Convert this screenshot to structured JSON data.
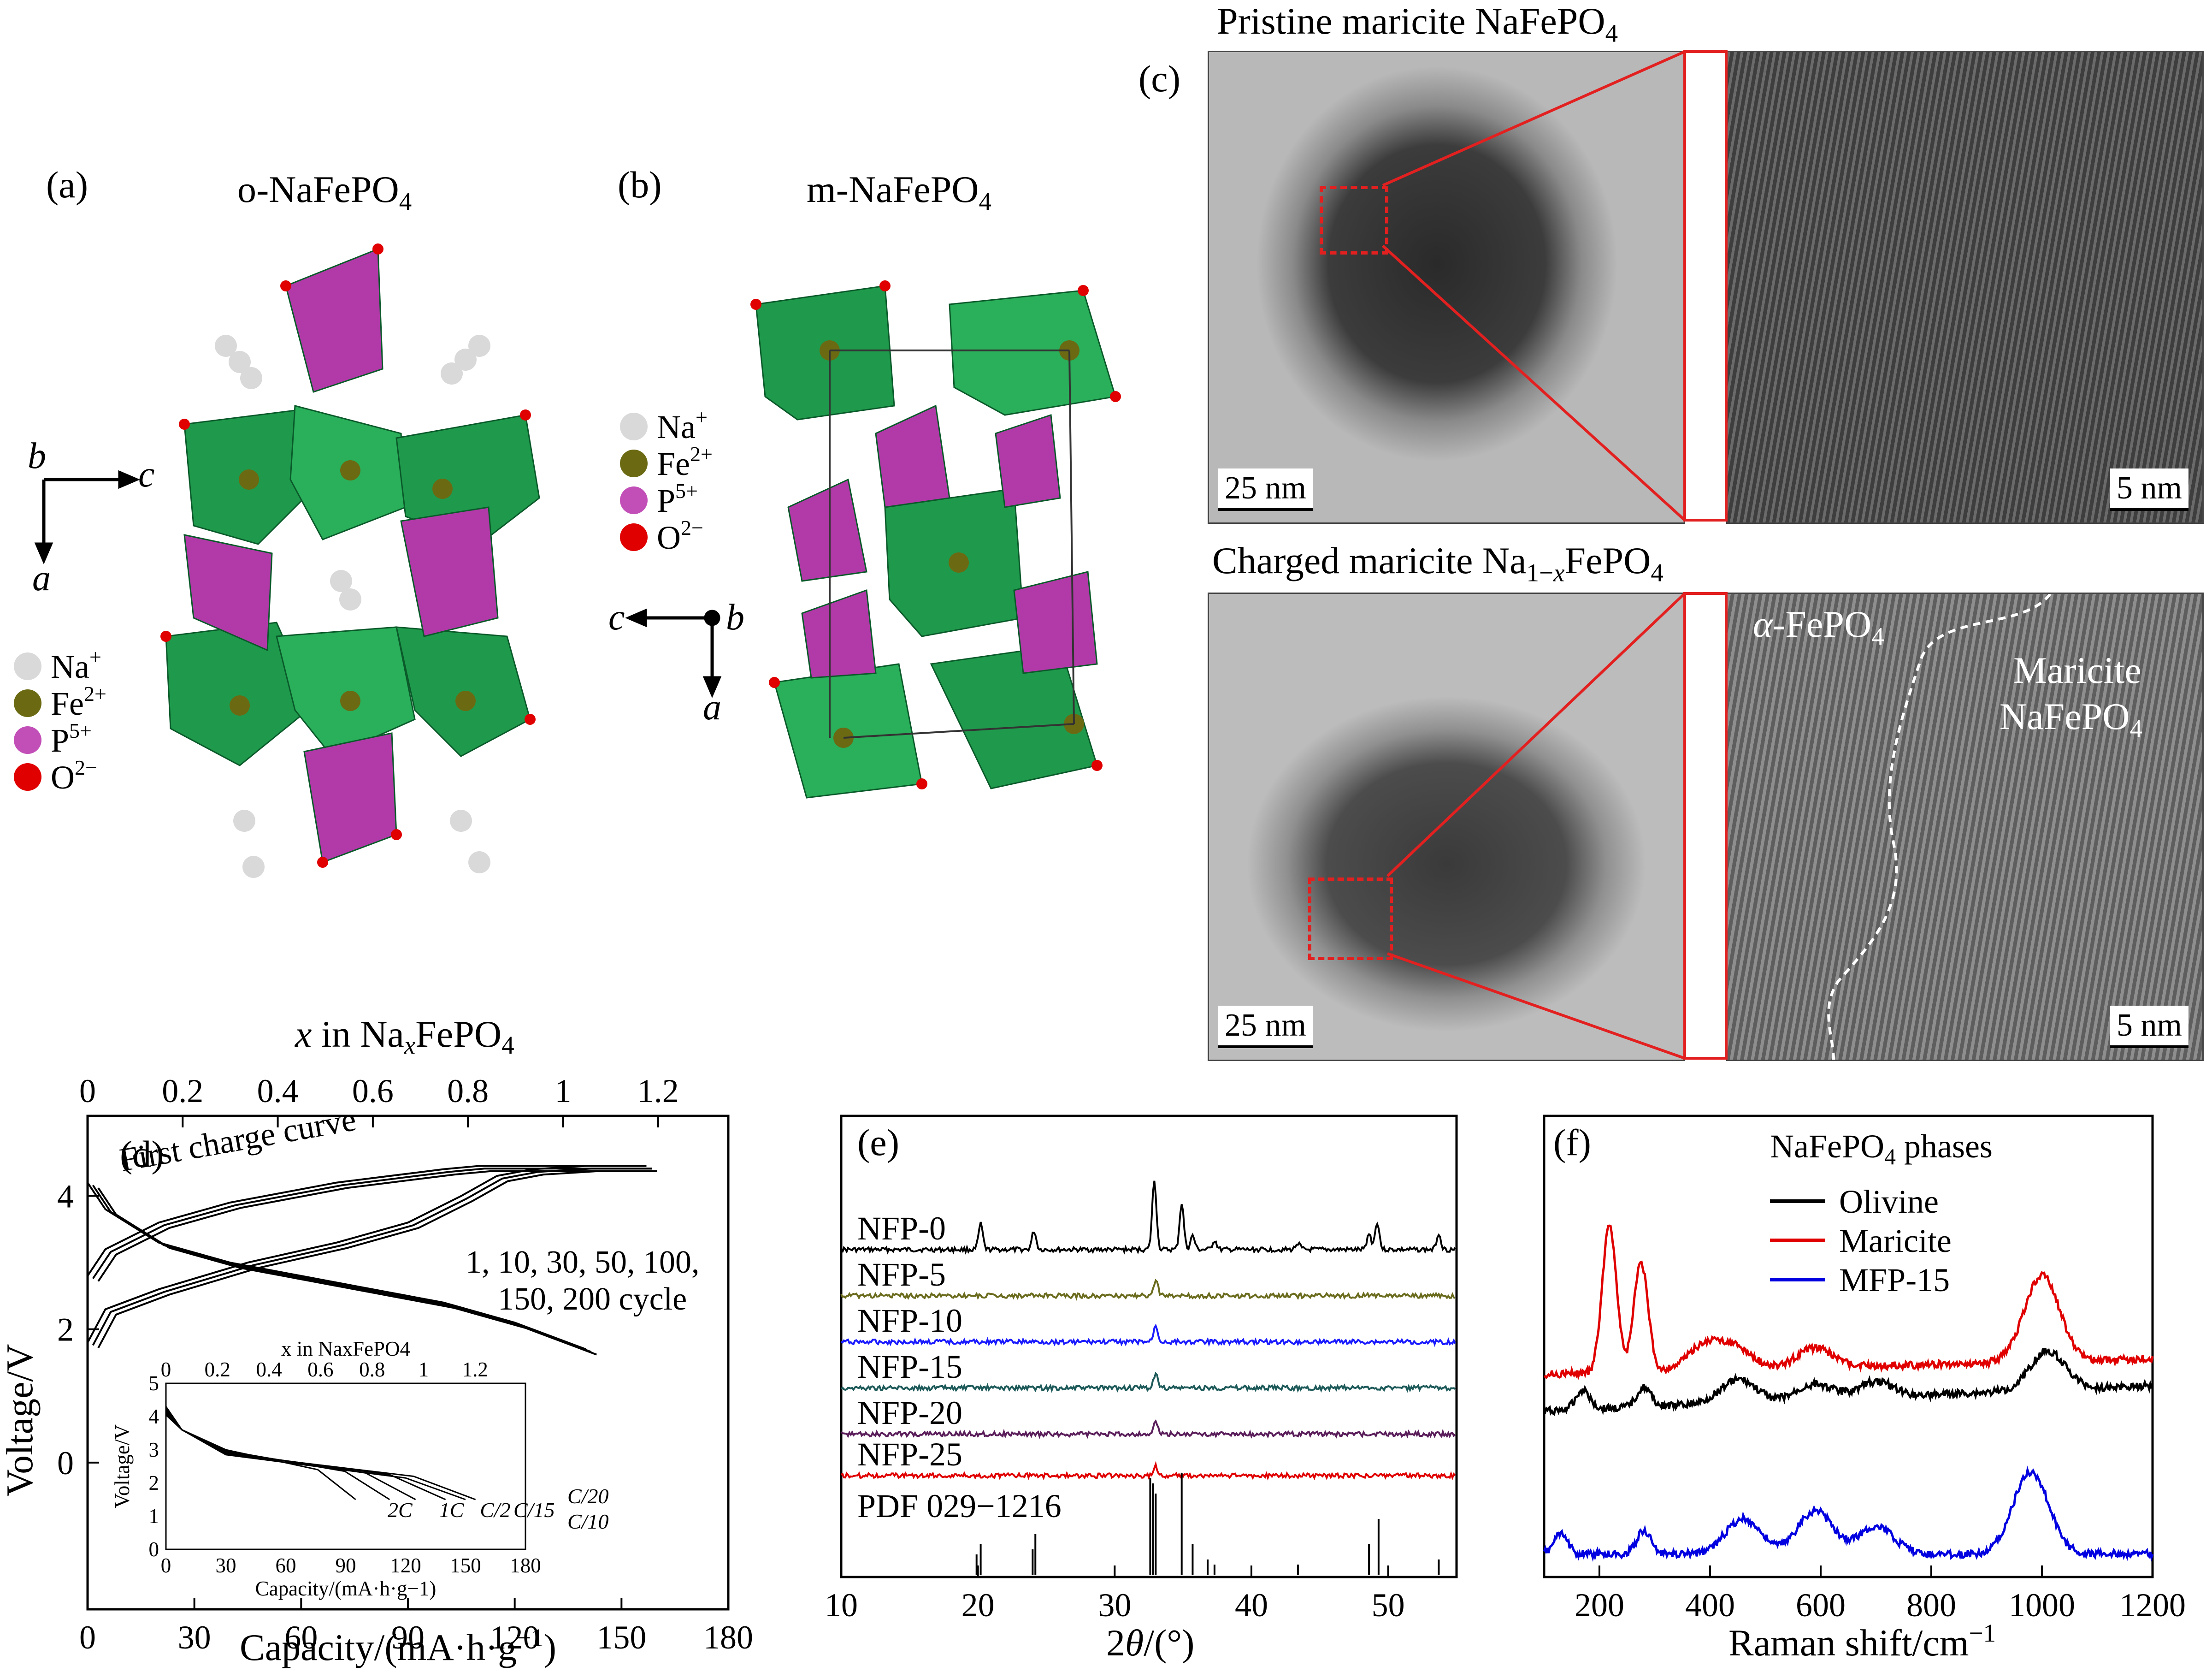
{
  "panels": {
    "a": {
      "label": "(a)",
      "title": "o-NaFePO4",
      "legend": [
        {
          "ion": "Na+",
          "color": "#d9d9d9"
        },
        {
          "ion": "Fe2+",
          "color": "#6b6a12"
        },
        {
          "ion": "P5+",
          "color": "#c24fb7"
        },
        {
          "ion": "O2−",
          "color": "#e00000"
        }
      ],
      "axes": {
        "h": "c",
        "v": "a",
        "point": "b"
      }
    },
    "b": {
      "label": "(b)",
      "title": "m-NaFePO4",
      "legend": [
        {
          "ion": "Na+",
          "color": "#d9d9d9"
        },
        {
          "ion": "Fe2+",
          "color": "#6b6a12"
        },
        {
          "ion": "P5+",
          "color": "#c24fb7"
        },
        {
          "ion": "O2−",
          "color": "#e00000"
        }
      ],
      "axes": {
        "h": "c",
        "v": "a",
        "point": "b"
      }
    },
    "c": {
      "label": "(c)",
      "top_title": "Pristine maricite NaFePO4",
      "bottom_title": "Charged maricite Na1−xFePO4",
      "scale_left": "25 nm",
      "scale_right": "5 nm",
      "phase_left": "α-FePO4",
      "phase_right_1": "Maricite",
      "phase_right_2": "NaFePO4"
    }
  },
  "chart_data": [
    {
      "panel": "(d)",
      "type": "line",
      "xlabel": "Capacity/(mA·h·g−1)",
      "ylabel": "Voltage/V",
      "top_xlabel": "x in NaxFePO4",
      "xlim": [
        0,
        180
      ],
      "ylim": [
        -2.2,
        5.2
      ],
      "xticks": [
        0,
        30,
        60,
        90,
        120,
        150,
        180
      ],
      "yticks": [
        0,
        2,
        4
      ],
      "top_ticks": [
        0,
        0.2,
        0.4,
        0.6,
        0.8,
        1.0,
        1.2
      ],
      "annotations": [
        "First charge curve",
        "1, 10, 30, 50, 100,",
        "150, 200 cycle"
      ],
      "series": [
        {
          "points": [
            [
              0,
              1.8
            ],
            [
              5,
              2.3
            ],
            [
              20,
              2.6
            ],
            [
              45,
              3.0
            ],
            [
              70,
              3.3
            ],
            [
              90,
              3.6
            ],
            [
              105,
              4.0
            ],
            [
              115,
              4.3
            ],
            [
              125,
              4.4
            ],
            [
              140,
              4.45
            ],
            [
              157,
              4.45
            ]
          ]
        },
        {
          "points": [
            [
              0,
              4.2
            ],
            [
              5,
              3.8
            ],
            [
              20,
              3.3
            ],
            [
              40,
              3.0
            ],
            [
              70,
              2.7
            ],
            [
              100,
              2.4
            ],
            [
              120,
              2.1
            ],
            [
              140,
              1.7
            ]
          ]
        },
        {
          "points": [
            [
              0,
              2.8
            ],
            [
              5,
              3.2
            ],
            [
              20,
              3.6
            ],
            [
              40,
              3.9
            ],
            [
              70,
              4.2
            ],
            [
              100,
              4.4
            ],
            [
              110,
              4.45
            ],
            [
              157,
              4.45
            ]
          ]
        }
      ],
      "inset": {
        "xlabel": "Capacity/(mA·h·g−1)",
        "ylabel": "Voltage/V",
        "top_xlabel": "x in NaxFePO4",
        "xlim": [
          0,
          180
        ],
        "ylim": [
          0,
          5
        ],
        "xticks": [
          0,
          30,
          60,
          90,
          120,
          150,
          180
        ],
        "yticks": [
          0,
          1,
          2,
          3,
          4,
          5
        ],
        "top_ticks": [
          0,
          0.2,
          0.4,
          0.6,
          0.8,
          1.0,
          1.2
        ],
        "rates": [
          "2C",
          "1C",
          "C/2",
          "C/15",
          "C/20",
          "C/10"
        ],
        "capacity_end": [
          95,
          112,
          125,
          140,
          155,
          150
        ]
      }
    },
    {
      "panel": "(e)",
      "type": "line",
      "xlabel": "2θ/(°)",
      "xlim": [
        10,
        55
      ],
      "xticks": [
        10,
        20,
        30,
        40,
        50
      ],
      "series": [
        {
          "name": "NFP-0",
          "color": "#000000",
          "peaks": [
            [
              20.2,
              0.55
            ],
            [
              24.1,
              0.4
            ],
            [
              32.9,
              1.5
            ],
            [
              34.9,
              1.0
            ],
            [
              35.7,
              0.3
            ],
            [
              37.3,
              0.2
            ],
            [
              43.4,
              0.15
            ],
            [
              48.6,
              0.35
            ],
            [
              49.2,
              0.6
            ],
            [
              53.7,
              0.35
            ]
          ]
        },
        {
          "name": "NFP-5",
          "color": "#6b6b1e",
          "peaks": [
            [
              33.0,
              0.35
            ]
          ]
        },
        {
          "name": "NFP-10",
          "color": "#1a1aff",
          "peaks": [
            [
              33.0,
              0.35
            ]
          ]
        },
        {
          "name": "NFP-15",
          "color": "#1e5a5a",
          "peaks": [
            [
              33.0,
              0.3
            ]
          ]
        },
        {
          "name": "NFP-20",
          "color": "#5a1e5a",
          "peaks": [
            [
              33.0,
              0.25
            ]
          ]
        },
        {
          "name": "NFP-25",
          "color": "#e00000",
          "peaks": [
            [
              33.0,
              0.2
            ]
          ]
        }
      ],
      "reference": {
        "name": "PDF 029−1216",
        "sticks": [
          [
            19.9,
            0.2
          ],
          [
            20.2,
            0.3
          ],
          [
            24.0,
            0.25
          ],
          [
            24.2,
            0.4
          ],
          [
            32.6,
            0.95
          ],
          [
            32.8,
            0.9
          ],
          [
            33.0,
            0.8
          ],
          [
            34.9,
            1.0
          ],
          [
            35.7,
            0.3
          ],
          [
            36.8,
            0.15
          ],
          [
            37.3,
            0.1
          ],
          [
            43.4,
            0.1
          ],
          [
            48.6,
            0.3
          ],
          [
            49.3,
            0.55
          ],
          [
            53.7,
            0.15
          ]
        ]
      }
    },
    {
      "panel": "(f)",
      "type": "line",
      "xlabel": "Raman shift/cm−1",
      "xlim": [
        100,
        1200
      ],
      "xticks": [
        200,
        400,
        600,
        800,
        1000,
        1200
      ],
      "legend_title": "NaFePO4 phases",
      "series": [
        {
          "name": "Olivine",
          "color": "#000000",
          "peaks": [
            [
              170,
              0.25
            ],
            [
              280,
              0.25
            ],
            [
              450,
              0.3
            ],
            [
              590,
              0.2
            ],
            [
              700,
              0.2
            ],
            [
              1010,
              0.5
            ]
          ]
        },
        {
          "name": "Maricite",
          "color": "#e00000",
          "peaks": [
            [
              218,
              1.9
            ],
            [
              275,
              1.4
            ],
            [
              390,
              0.3
            ],
            [
              445,
              0.25
            ],
            [
              590,
              0.25
            ],
            [
              1000,
              1.1
            ]
          ]
        },
        {
          "name": "MFP-15",
          "color": "#0000e0",
          "peaks": [
            [
              130,
              0.25
            ],
            [
              280,
              0.3
            ],
            [
              460,
              0.45
            ],
            [
              590,
              0.55
            ],
            [
              700,
              0.35
            ],
            [
              980,
              1.05
            ]
          ]
        }
      ]
    }
  ]
}
